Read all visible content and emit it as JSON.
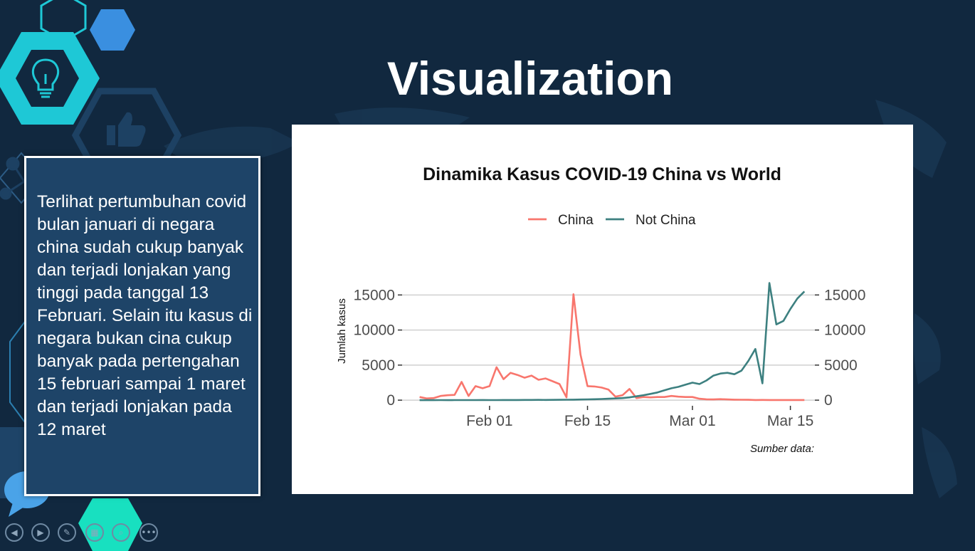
{
  "slide": {
    "title": "Visualization",
    "body_text": "Terlihat pertumbuhan covid bulan januari di negara china sudah cukup banyak dan terjadi lonjakan yang tinggi pada tanggal 13 Februari. Selain itu kasus di negara bukan cina cukup banyak pada pertengahan 15 februari sampai 1 maret dan terjadi lonjakan pada 12 maret"
  },
  "decor": {
    "icons": [
      "lightbulb-icon",
      "thumbs-up-icon",
      "speech-bubble-icon"
    ],
    "colors": {
      "background": "#11283f",
      "hex_teal": "#1ec8d6",
      "hex_blue": "#3a8fe0",
      "hex_mint": "#18e0c0",
      "text_panel": "#1e4468"
    }
  },
  "nav": {
    "buttons": [
      {
        "icon": "previous-icon",
        "glyph": "◀"
      },
      {
        "icon": "next-icon",
        "glyph": "▶"
      },
      {
        "icon": "pen-icon",
        "glyph": "✎"
      },
      {
        "icon": "slides-icon",
        "glyph": "▦"
      },
      {
        "icon": "zoom-icon",
        "glyph": "⌕"
      },
      {
        "icon": "more-icon",
        "glyph": "•••"
      }
    ]
  },
  "chart_data": {
    "type": "line",
    "title": "Dinamika Kasus COVID-19 China vs World",
    "ylabel": "Jumlah kasus",
    "xlabel": "",
    "caption": "Sumber data:",
    "legend_position": "top",
    "grid": "horizontal",
    "x_ticks": [
      {
        "label": "Feb 01",
        "value": 10
      },
      {
        "label": "Feb 15",
        "value": 24
      },
      {
        "label": "Mar 01",
        "value": 39
      },
      {
        "label": "Mar 15",
        "value": 53
      }
    ],
    "y_ticks": [
      0,
      5000,
      10000,
      15000
    ],
    "y_tick_labels": [
      "0",
      "5000",
      "10000",
      "15000"
    ],
    "xlim": [
      -2.5,
      56.5
    ],
    "ylim": [
      -800,
      19500
    ],
    "x_note": "x values are days from Jan 22",
    "colors": {
      "China": "#f8766d",
      "Not China": "#3d8080"
    },
    "series": [
      {
        "name": "China",
        "x": [
          0,
          1,
          2,
          3,
          4,
          5,
          6,
          7,
          8,
          9,
          10,
          11,
          12,
          13,
          14,
          15,
          16,
          17,
          18,
          19,
          20,
          21,
          22,
          23,
          24,
          25,
          26,
          27,
          28,
          29,
          30,
          31,
          32,
          33,
          34,
          35,
          36,
          37,
          38,
          39,
          40,
          41,
          42,
          43,
          44,
          45,
          46,
          47,
          48,
          49,
          50,
          51,
          52,
          53,
          54,
          55
        ],
        "values": [
          450,
          250,
          300,
          600,
          700,
          750,
          2600,
          600,
          2000,
          1700,
          2000,
          4700,
          3000,
          3900,
          3600,
          3200,
          3500,
          2900,
          3100,
          2700,
          2300,
          400,
          15100,
          6500,
          2000,
          1950,
          1800,
          1500,
          500,
          700,
          1600,
          300,
          450,
          400,
          450,
          450,
          600,
          500,
          450,
          450,
          200,
          125,
          100,
          140,
          100,
          70,
          60,
          50,
          20,
          30,
          20,
          20,
          20,
          20,
          20,
          20
        ]
      },
      {
        "name": "Not China",
        "x": [
          0,
          1,
          2,
          3,
          4,
          5,
          6,
          7,
          8,
          9,
          10,
          11,
          12,
          13,
          14,
          15,
          16,
          17,
          18,
          19,
          20,
          21,
          22,
          23,
          24,
          25,
          26,
          27,
          28,
          29,
          30,
          31,
          32,
          33,
          34,
          35,
          36,
          37,
          38,
          39,
          40,
          41,
          42,
          43,
          44,
          45,
          46,
          47,
          48,
          49,
          50,
          51,
          52,
          53,
          54,
          55
        ],
        "values": [
          0,
          5,
          5,
          10,
          5,
          10,
          15,
          10,
          10,
          20,
          15,
          15,
          20,
          25,
          25,
          30,
          30,
          40,
          35,
          45,
          50,
          60,
          75,
          90,
          110,
          130,
          160,
          200,
          250,
          300,
          400,
          550,
          700,
          900,
          1100,
          1400,
          1700,
          1900,
          2200,
          2500,
          2300,
          2800,
          3500,
          3800,
          3900,
          3700,
          4200,
          5600,
          7300,
          2400,
          16700,
          10800,
          11300,
          13000,
          14500,
          15500
        ]
      }
    ]
  }
}
